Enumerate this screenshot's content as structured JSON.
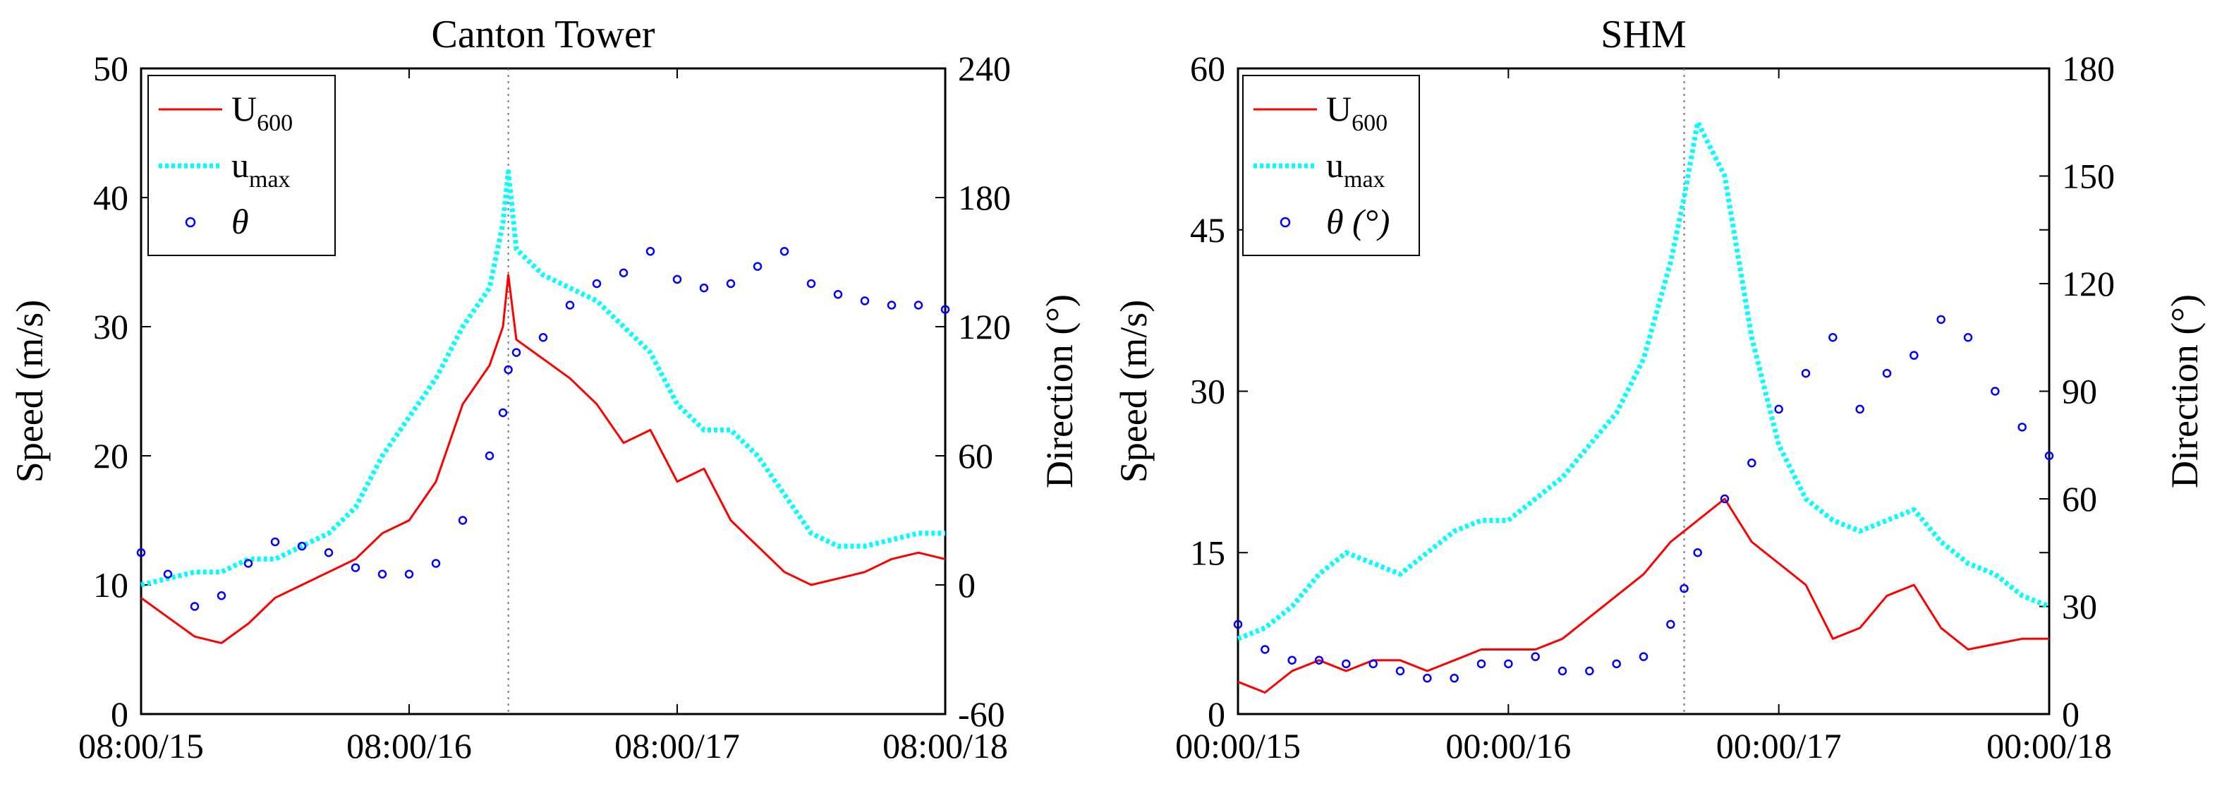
{
  "chart_data": [
    {
      "type": "line",
      "title": "Canton Tower",
      "xlabel": "",
      "ylabel": "Speed (m/s)",
      "y2label": "",
      "x_tick_labels": [
        "08:00/15",
        "08:00/16",
        "08:00/17",
        "08:00/18"
      ],
      "x_range_days": [
        15,
        18
      ],
      "ylim": [
        0,
        50
      ],
      "yticks": [
        0,
        10,
        20,
        30,
        40,
        50
      ],
      "y2lim": [
        -60,
        240
      ],
      "y2ticks": [
        -60,
        0,
        60,
        120,
        180,
        240
      ],
      "marker_line_x": 16.37,
      "legend": [
        {
          "main": "U",
          "sub": "600",
          "style": "solid",
          "color": "#ff0000"
        },
        {
          "main": "u",
          "sub": "max",
          "style": "dotted",
          "color": "#00ffff"
        },
        {
          "main": "θ",
          "sub": "",
          "style": "circle",
          "color": "#0000ff"
        }
      ],
      "series": [
        {
          "name": "U600",
          "axis": "left",
          "color": "#ff0000",
          "x": [
            15.0,
            15.1,
            15.2,
            15.3,
            15.4,
            15.5,
            15.6,
            15.7,
            15.8,
            15.9,
            16.0,
            16.1,
            16.2,
            16.3,
            16.35,
            16.37,
            16.4,
            16.5,
            16.6,
            16.7,
            16.8,
            16.9,
            17.0,
            17.1,
            17.2,
            17.3,
            17.4,
            17.5,
            17.6,
            17.7,
            17.8,
            17.9,
            18.0
          ],
          "y": [
            9,
            7.5,
            6,
            5.5,
            7,
            9,
            10,
            11,
            12,
            14,
            15,
            18,
            24,
            27,
            30,
            34,
            29,
            27.5,
            26,
            24,
            21,
            22,
            18,
            19,
            15,
            13,
            11,
            10,
            10.5,
            11,
            12,
            12.5,
            12
          ]
        },
        {
          "name": "umax",
          "axis": "left",
          "color": "#00ffff",
          "x": [
            15.0,
            15.1,
            15.2,
            15.3,
            15.4,
            15.5,
            15.6,
            15.7,
            15.8,
            15.9,
            16.0,
            16.1,
            16.2,
            16.3,
            16.35,
            16.37,
            16.4,
            16.5,
            16.6,
            16.7,
            16.8,
            16.9,
            17.0,
            17.1,
            17.2,
            17.3,
            17.4,
            17.5,
            17.6,
            17.7,
            17.8,
            17.9,
            18.0
          ],
          "y": [
            10,
            10.5,
            11,
            11,
            12,
            12,
            13,
            14,
            16,
            20,
            23,
            26,
            30,
            33,
            38,
            42,
            36,
            34,
            33,
            32,
            30,
            28,
            24,
            22,
            22,
            20,
            17,
            14,
            13,
            13,
            13.5,
            14,
            14
          ]
        },
        {
          "name": "θ",
          "axis": "right",
          "color": "#0000ff",
          "x": [
            15.0,
            15.1,
            15.2,
            15.3,
            15.4,
            15.5,
            15.6,
            15.7,
            15.8,
            15.9,
            16.0,
            16.1,
            16.2,
            16.3,
            16.35,
            16.37,
            16.4,
            16.5,
            16.6,
            16.7,
            16.8,
            16.9,
            17.0,
            17.1,
            17.2,
            17.3,
            17.4,
            17.5,
            17.6,
            17.7,
            17.8,
            17.9,
            18.0
          ],
          "y": [
            15,
            5,
            -10,
            -5,
            10,
            20,
            18,
            15,
            8,
            5,
            5,
            10,
            30,
            60,
            80,
            100,
            108,
            115,
            130,
            140,
            145,
            155,
            142,
            138,
            140,
            148,
            155,
            140,
            135,
            132,
            130,
            130,
            128
          ]
        }
      ]
    },
    {
      "type": "line",
      "title": "SHM",
      "xlabel": "",
      "ylabel": "Speed (m/s)",
      "y2label": "Direction (°)",
      "x_tick_labels": [
        "00:00/15",
        "00:00/16",
        "00:00/17",
        "00:00/18"
      ],
      "x_range_days": [
        15,
        18
      ],
      "ylim": [
        0,
        60
      ],
      "yticks": [
        0,
        15,
        30,
        45,
        60
      ],
      "y2lim": [
        0,
        180
      ],
      "y2ticks": [
        0,
        30,
        60,
        90,
        120,
        150,
        180
      ],
      "marker_line_x": 16.65,
      "legend": [
        {
          "main": "U",
          "sub": "600",
          "style": "solid",
          "color": "#ff0000"
        },
        {
          "main": "u",
          "sub": "max",
          "style": "dotted",
          "color": "#00ffff"
        },
        {
          "main": "θ (°)",
          "sub": "",
          "style": "circle",
          "color": "#0000ff"
        }
      ],
      "series": [
        {
          "name": "U600",
          "axis": "left",
          "color": "#ff0000",
          "x": [
            15.0,
            15.1,
            15.2,
            15.3,
            15.4,
            15.5,
            15.6,
            15.7,
            15.8,
            15.9,
            16.0,
            16.1,
            16.2,
            16.3,
            16.4,
            16.5,
            16.6,
            16.65,
            16.7,
            16.8,
            16.9,
            17.0,
            17.1,
            17.2,
            17.3,
            17.4,
            17.5,
            17.6,
            17.7,
            17.8,
            17.9,
            18.0
          ],
          "y": [
            3,
            2,
            4,
            5,
            4,
            5,
            5,
            4,
            5,
            6,
            6,
            6,
            7,
            9,
            11,
            13,
            16,
            17,
            18,
            20,
            16,
            14,
            12,
            7,
            8,
            11,
            12,
            8,
            6,
            6.5,
            7,
            7
          ]
        },
        {
          "name": "umax",
          "axis": "left",
          "color": "#00ffff",
          "x": [
            15.0,
            15.1,
            15.2,
            15.3,
            15.4,
            15.5,
            15.6,
            15.7,
            15.8,
            15.9,
            16.0,
            16.1,
            16.2,
            16.3,
            16.4,
            16.5,
            16.6,
            16.65,
            16.7,
            16.8,
            16.9,
            17.0,
            17.1,
            17.2,
            17.3,
            17.4,
            17.5,
            17.6,
            17.7,
            17.8,
            17.9,
            18.0
          ],
          "y": [
            7,
            8,
            10,
            13,
            15,
            14,
            13,
            15,
            17,
            18,
            18,
            20,
            22,
            25,
            28,
            33,
            42,
            48,
            55,
            50,
            35,
            25,
            20,
            18,
            17,
            18,
            19,
            16,
            14,
            13,
            11,
            10
          ]
        },
        {
          "name": "θ",
          "axis": "right",
          "color": "#0000ff",
          "x": [
            15.0,
            15.1,
            15.2,
            15.3,
            15.4,
            15.5,
            15.6,
            15.7,
            15.8,
            15.9,
            16.0,
            16.1,
            16.2,
            16.3,
            16.4,
            16.5,
            16.6,
            16.65,
            16.7,
            16.8,
            16.9,
            17.0,
            17.1,
            17.2,
            17.3,
            17.4,
            17.5,
            17.6,
            17.7,
            17.8,
            17.9,
            18.0
          ],
          "y": [
            25,
            18,
            15,
            15,
            14,
            14,
            12,
            10,
            10,
            14,
            14,
            16,
            12,
            12,
            14,
            16,
            25,
            35,
            45,
            60,
            70,
            85,
            95,
            105,
            85,
            95,
            100,
            110,
            105,
            90,
            80,
            72
          ]
        }
      ]
    }
  ]
}
